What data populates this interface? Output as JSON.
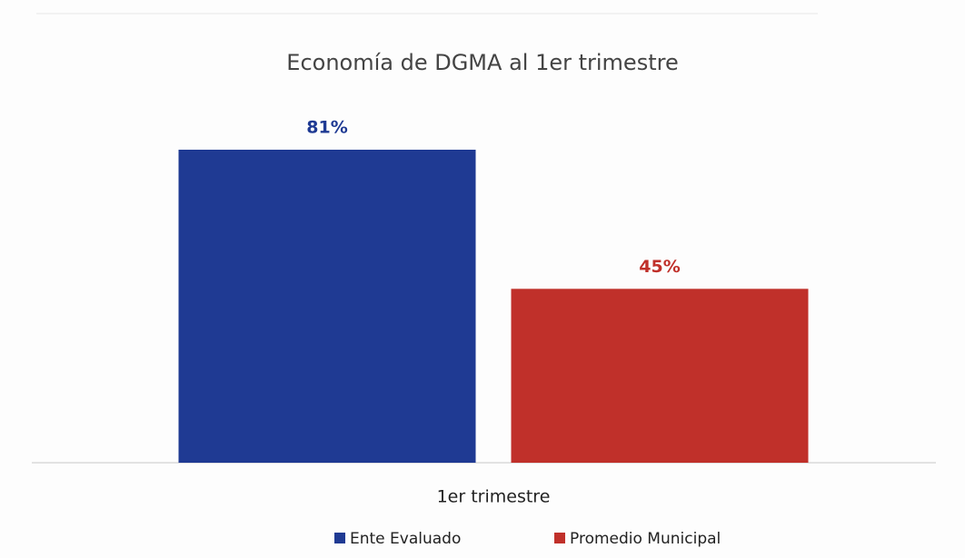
{
  "chart_data": {
    "type": "bar",
    "title": "Economía de DGMA al 1er trimestre",
    "categories": [
      "1er trimestre"
    ],
    "series": [
      {
        "name": "Ente Evaluado",
        "color": "#1f3a93",
        "values": [
          81
        ],
        "value_labels": [
          "81%"
        ]
      },
      {
        "name": "Promedio Municipal",
        "color": "#c0302a",
        "values": [
          45
        ],
        "value_labels": [
          "45%"
        ]
      }
    ],
    "legend": "bottom"
  }
}
